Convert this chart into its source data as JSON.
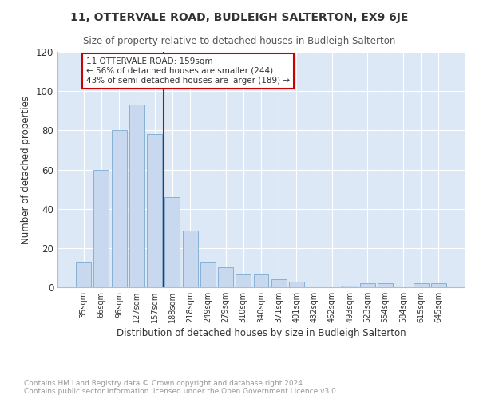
{
  "title": "11, OTTERVALE ROAD, BUDLEIGH SALTERTON, EX9 6JE",
  "subtitle": "Size of property relative to detached houses in Budleigh Salterton",
  "xlabel": "Distribution of detached houses by size in Budleigh Salterton",
  "ylabel": "Number of detached properties",
  "footnote": "Contains HM Land Registry data © Crown copyright and database right 2024.\nContains public sector information licensed under the Open Government Licence v3.0.",
  "bar_labels": [
    "35sqm",
    "66sqm",
    "96sqm",
    "127sqm",
    "157sqm",
    "188sqm",
    "218sqm",
    "249sqm",
    "279sqm",
    "310sqm",
    "340sqm",
    "371sqm",
    "401sqm",
    "432sqm",
    "462sqm",
    "493sqm",
    "523sqm",
    "554sqm",
    "584sqm",
    "615sqm",
    "645sqm"
  ],
  "bar_values": [
    13,
    60,
    80,
    93,
    78,
    46,
    29,
    13,
    10,
    7,
    7,
    4,
    3,
    0,
    0,
    1,
    2,
    2,
    0,
    2,
    2
  ],
  "bar_color": "#c8d8ee",
  "bar_edge_color": "#7aaad0",
  "vline_x": 4.5,
  "vline_color": "#cc0000",
  "annotation_text": "11 OTTERVALE ROAD: 159sqm\n← 56% of detached houses are smaller (244)\n43% of semi-detached houses are larger (189) →",
  "annotation_box_color": "#ffffff",
  "annotation_box_edge": "#cc0000",
  "ylim": [
    0,
    120
  ],
  "yticks": [
    0,
    20,
    40,
    60,
    80,
    100,
    120
  ],
  "fig_bg_color": "#ffffff",
  "plot_bg_color": "#dce8f5",
  "grid_color": "#ffffff"
}
